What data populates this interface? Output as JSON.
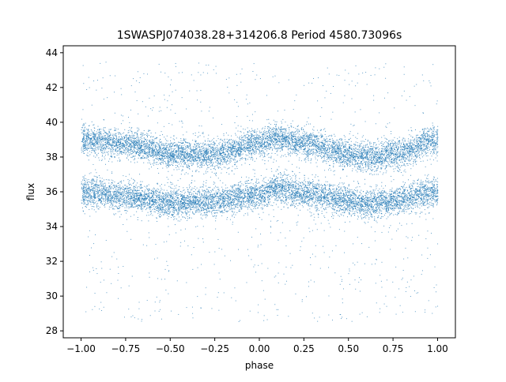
{
  "chart_data": {
    "type": "scatter",
    "title": "1SWASPJ074038.28+314206.8 Period 4580.73096s",
    "xlabel": "phase",
    "ylabel": "flux",
    "xlim": [
      -1.1,
      1.1
    ],
    "ylim": [
      27.6,
      44.4
    ],
    "xticks": [
      -1.0,
      -0.75,
      -0.5,
      -0.25,
      0.0,
      0.25,
      0.5,
      0.75,
      1.0
    ],
    "xtick_labels": [
      "−1.00",
      "−0.75",
      "−0.50",
      "−0.25",
      "0.00",
      "0.25",
      "0.50",
      "0.75",
      "1.00"
    ],
    "yticks": [
      28,
      30,
      32,
      34,
      36,
      38,
      40,
      42,
      44
    ],
    "ytick_labels": [
      "28",
      "30",
      "32",
      "34",
      "36",
      "38",
      "40",
      "42",
      "44"
    ],
    "grid": false,
    "legend": "none",
    "point_color": "#1f77b4",
    "series": [
      {
        "x_range": [
          -1.0,
          1.0
        ],
        "band_profile_phase": [
          -1.0,
          -0.75,
          -0.5,
          -0.25,
          0.0,
          0.1,
          0.25,
          0.5,
          0.6,
          0.75,
          1.0
        ],
        "upper_band_flux": [
          39.0,
          38.8,
          38.2,
          38.2,
          38.8,
          39.1,
          38.8,
          38.2,
          38.0,
          38.2,
          39.0
        ],
        "lower_band_flux": [
          36.0,
          35.8,
          35.4,
          35.5,
          35.9,
          36.3,
          35.9,
          35.5,
          35.3,
          35.5,
          36.0
        ],
        "band_spread": 0.55,
        "outlier_range": [
          28.5,
          43.5
        ]
      }
    ]
  }
}
